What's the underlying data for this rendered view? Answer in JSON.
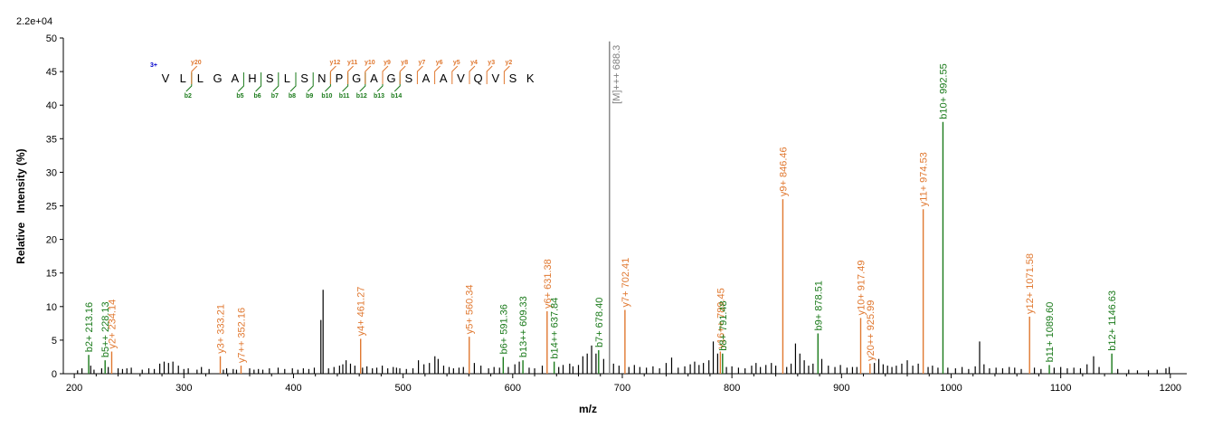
{
  "chart_data": {
    "type": "bar",
    "scale_label": "2.2e+04",
    "xlabel": "m/z",
    "ylabel": "Relative   Intensity (%)",
    "xlim": [
      190,
      1215
    ],
    "ylim": [
      0,
      50
    ],
    "xticks": [
      200,
      300,
      400,
      500,
      600,
      700,
      800,
      900,
      1000,
      1100,
      1200
    ],
    "yticks": [
      0,
      5,
      10,
      15,
      20,
      25,
      30,
      35,
      40,
      45,
      50
    ],
    "colors": {
      "b": "#1a7a1a",
      "y": "#e07830",
      "precursor": "#808080",
      "other": "#000000",
      "charge": "#0000cc"
    },
    "peptide": {
      "charge": "3+",
      "sequence": [
        "V",
        "L",
        "L",
        "G",
        "A",
        "H",
        "S",
        "L",
        "S",
        "N",
        "P",
        "G",
        "A",
        "G",
        "S",
        "A",
        "A",
        "V",
        "Q",
        "V",
        "S",
        "K"
      ],
      "b_ions": [
        {
          "after": 2,
          "label": "b2"
        },
        {
          "after": 5,
          "label": "b5"
        },
        {
          "after": 6,
          "label": "b6"
        },
        {
          "after": 7,
          "label": "b7"
        },
        {
          "after": 8,
          "label": "b8"
        },
        {
          "after": 9,
          "label": "b9"
        },
        {
          "after": 10,
          "label": "b10"
        },
        {
          "after": 11,
          "label": "b11"
        },
        {
          "after": 12,
          "label": "b12"
        },
        {
          "after": 13,
          "label": "b13"
        },
        {
          "after": 14,
          "label": "b14"
        }
      ],
      "y_ions": [
        {
          "after": 2,
          "label": "y20"
        },
        {
          "after": 10,
          "label": "y12"
        },
        {
          "after": 11,
          "label": "y11"
        },
        {
          "after": 12,
          "label": "y10"
        },
        {
          "after": 13,
          "label": "y9"
        },
        {
          "after": 14,
          "label": "y8"
        },
        {
          "after": 15,
          "label": "y7"
        },
        {
          "after": 16,
          "label": "y6"
        },
        {
          "after": 17,
          "label": "y5"
        },
        {
          "after": 18,
          "label": "y4"
        },
        {
          "after": 19,
          "label": "y3"
        },
        {
          "after": 20,
          "label": "y2"
        }
      ]
    },
    "annotated_peaks": [
      {
        "mz": 213.16,
        "intensity": 2.8,
        "type": "b",
        "label": "b2+ 213.16"
      },
      {
        "mz": 228.13,
        "intensity": 2.0,
        "type": "b",
        "label": "b5++ 228.13"
      },
      {
        "mz": 234.14,
        "intensity": 3.3,
        "type": "y",
        "label": "y2+ 234.14"
      },
      {
        "mz": 333.21,
        "intensity": 2.6,
        "type": "y",
        "label": "y3+ 333.21"
      },
      {
        "mz": 352.16,
        "intensity": 1.2,
        "type": "y",
        "label": "y7++ 352.16"
      },
      {
        "mz": 461.27,
        "intensity": 5.2,
        "type": "y",
        "label": "y4+ 461.27"
      },
      {
        "mz": 560.34,
        "intensity": 5.5,
        "type": "y",
        "label": "y5+ 560.34"
      },
      {
        "mz": 591.36,
        "intensity": 2.5,
        "type": "b",
        "label": "b6+ 591.36"
      },
      {
        "mz": 609.33,
        "intensity": 2.0,
        "type": "b",
        "label": "b13++ 609.33"
      },
      {
        "mz": 631.38,
        "intensity": 9.3,
        "type": "y",
        "label": "y6+ 631.38"
      },
      {
        "mz": 637.84,
        "intensity": 1.8,
        "type": "b",
        "label": "b14++ 637.84"
      },
      {
        "mz": 678.4,
        "intensity": 3.5,
        "type": "b",
        "label": "b7+ 678.40"
      },
      {
        "mz": 688.3,
        "intensity": 49.5,
        "type": "precursor",
        "label": "[M]+++ 688.3"
      },
      {
        "mz": 702.41,
        "intensity": 9.5,
        "type": "y",
        "label": "y7+ 702.41"
      },
      {
        "mz": 789.45,
        "intensity": 3.3,
        "type": "y",
        "label": "y16++ 789.45"
      },
      {
        "mz": 791.48,
        "intensity": 3.0,
        "type": "b",
        "label": "b8+ 791.48"
      },
      {
        "mz": 846.46,
        "intensity": 26.0,
        "type": "y",
        "label": "y9+ 846.46"
      },
      {
        "mz": 878.51,
        "intensity": 6.0,
        "type": "b",
        "label": "b9+ 878.51"
      },
      {
        "mz": 917.49,
        "intensity": 8.3,
        "type": "y",
        "label": "y10+ 917.49"
      },
      {
        "mz": 925.99,
        "intensity": 1.5,
        "type": "y",
        "label": "y20++ 925.99"
      },
      {
        "mz": 974.53,
        "intensity": 24.5,
        "type": "y",
        "label": "y11+ 974.53"
      },
      {
        "mz": 992.55,
        "intensity": 37.5,
        "type": "b",
        "label": "b10+ 992.55"
      },
      {
        "mz": 1071.58,
        "intensity": 8.5,
        "type": "y",
        "label": "y12+ 1071.58"
      },
      {
        "mz": 1089.6,
        "intensity": 1.3,
        "type": "b",
        "label": "b11+ 1089.60"
      },
      {
        "mz": 1146.63,
        "intensity": 3.0,
        "type": "b",
        "label": "b12+ 1146.63"
      }
    ],
    "other_peaks": [
      [
        203,
        0.5
      ],
      [
        207,
        0.8
      ],
      [
        215,
        1.2
      ],
      [
        218,
        0.6
      ],
      [
        225,
        0.8
      ],
      [
        231,
        1.0
      ],
      [
        240,
        0.8
      ],
      [
        244,
        0.7
      ],
      [
        248,
        0.8
      ],
      [
        252,
        0.9
      ],
      [
        262,
        0.6
      ],
      [
        268,
        0.8
      ],
      [
        273,
        0.7
      ],
      [
        278,
        1.5
      ],
      [
        282,
        1.8
      ],
      [
        286,
        1.6
      ],
      [
        290,
        1.8
      ],
      [
        295,
        1.2
      ],
      [
        300,
        0.7
      ],
      [
        304,
        0.8
      ],
      [
        312,
        0.6
      ],
      [
        316,
        1.0
      ],
      [
        323,
        0.7
      ],
      [
        336,
        0.6
      ],
      [
        339,
        0.8
      ],
      [
        345,
        0.7
      ],
      [
        348,
        0.6
      ],
      [
        360,
        0.8
      ],
      [
        364,
        0.6
      ],
      [
        368,
        0.7
      ],
      [
        372,
        0.6
      ],
      [
        378,
        0.8
      ],
      [
        386,
        0.9
      ],
      [
        392,
        0.7
      ],
      [
        399,
        0.8
      ],
      [
        404,
        0.6
      ],
      [
        409,
        0.8
      ],
      [
        414,
        0.7
      ],
      [
        419,
        0.9
      ],
      [
        425,
        8.0
      ],
      [
        427,
        12.5
      ],
      [
        432,
        0.8
      ],
      [
        437,
        1.0
      ],
      [
        442,
        1.2
      ],
      [
        445,
        1.4
      ],
      [
        448,
        2.0
      ],
      [
        452,
        1.5
      ],
      [
        456,
        1.2
      ],
      [
        463,
        0.9
      ],
      [
        467,
        1.1
      ],
      [
        472,
        0.8
      ],
      [
        476,
        0.9
      ],
      [
        481,
        1.2
      ],
      [
        486,
        0.8
      ],
      [
        491,
        1.0
      ],
      [
        494,
        0.9
      ],
      [
        497,
        0.8
      ],
      [
        503,
        0.7
      ],
      [
        509,
        0.8
      ],
      [
        514,
        2.0
      ],
      [
        519,
        1.4
      ],
      [
        524,
        1.6
      ],
      [
        529,
        2.6
      ],
      [
        532,
        2.2
      ],
      [
        537,
        1.2
      ],
      [
        542,
        1.0
      ],
      [
        546,
        0.8
      ],
      [
        551,
        0.9
      ],
      [
        555,
        1.0
      ],
      [
        565,
        1.6
      ],
      [
        571,
        1.2
      ],
      [
        578,
        0.8
      ],
      [
        583,
        1.0
      ],
      [
        588,
        0.9
      ],
      [
        596,
        1.0
      ],
      [
        602,
        1.4
      ],
      [
        606,
        1.8
      ],
      [
        615,
        0.9
      ],
      [
        620,
        0.8
      ],
      [
        627,
        1.2
      ],
      [
        642,
        1.0
      ],
      [
        646,
        1.3
      ],
      [
        652,
        1.5
      ],
      [
        655,
        1.1
      ],
      [
        660,
        1.3
      ],
      [
        664,
        2.6
      ],
      [
        668,
        3.0
      ],
      [
        672,
        4.2
      ],
      [
        676,
        3.0
      ],
      [
        683,
        2.2
      ],
      [
        692,
        1.5
      ],
      [
        697,
        1.2
      ],
      [
        706,
        1.0
      ],
      [
        711,
        1.3
      ],
      [
        716,
        1.0
      ],
      [
        722,
        0.9
      ],
      [
        728,
        1.1
      ],
      [
        734,
        0.8
      ],
      [
        740,
        1.6
      ],
      [
        745,
        2.4
      ],
      [
        751,
        0.9
      ],
      [
        757,
        1.1
      ],
      [
        762,
        1.4
      ],
      [
        766,
        1.8
      ],
      [
        770,
        1.3
      ],
      [
        774,
        1.6
      ],
      [
        779,
        2.0
      ],
      [
        783,
        4.8
      ],
      [
        787,
        3.0
      ],
      [
        795,
        1.0
      ],
      [
        800,
        1.1
      ],
      [
        806,
        0.9
      ],
      [
        812,
        0.8
      ],
      [
        818,
        1.2
      ],
      [
        822,
        1.6
      ],
      [
        826,
        1.0
      ],
      [
        831,
        1.3
      ],
      [
        836,
        1.6
      ],
      [
        840,
        1.2
      ],
      [
        850,
        1.0
      ],
      [
        854,
        1.5
      ],
      [
        858,
        4.5
      ],
      [
        862,
        3.0
      ],
      [
        866,
        2.0
      ],
      [
        870,
        1.2
      ],
      [
        874,
        1.5
      ],
      [
        882,
        2.2
      ],
      [
        888,
        1.2
      ],
      [
        894,
        1.0
      ],
      [
        899,
        1.3
      ],
      [
        905,
        0.9
      ],
      [
        910,
        1.0
      ],
      [
        914,
        1.0
      ],
      [
        930,
        1.6
      ],
      [
        934,
        2.2
      ],
      [
        938,
        1.4
      ],
      [
        942,
        1.2
      ],
      [
        946,
        1.0
      ],
      [
        950,
        1.2
      ],
      [
        955,
        1.5
      ],
      [
        960,
        2.0
      ],
      [
        965,
        1.2
      ],
      [
        970,
        1.5
      ],
      [
        979,
        1.0
      ],
      [
        983,
        1.2
      ],
      [
        988,
        0.9
      ],
      [
        997,
        0.9
      ],
      [
        1004,
        0.8
      ],
      [
        1010,
        1.0
      ],
      [
        1016,
        0.7
      ],
      [
        1022,
        1.1
      ],
      [
        1026,
        4.8
      ],
      [
        1030,
        1.4
      ],
      [
        1035,
        0.8
      ],
      [
        1041,
        0.9
      ],
      [
        1047,
        0.8
      ],
      [
        1053,
        1.0
      ],
      [
        1058,
        0.9
      ],
      [
        1064,
        0.7
      ],
      [
        1076,
        0.9
      ],
      [
        1082,
        0.7
      ],
      [
        1094,
        0.9
      ],
      [
        1100,
        1.0
      ],
      [
        1106,
        0.8
      ],
      [
        1112,
        0.9
      ],
      [
        1118,
        0.8
      ],
      [
        1124,
        1.4
      ],
      [
        1130,
        2.6
      ],
      [
        1135,
        1.0
      ],
      [
        1152,
        0.7
      ],
      [
        1162,
        0.6
      ],
      [
        1170,
        0.5
      ],
      [
        1180,
        0.5
      ],
      [
        1188,
        0.6
      ],
      [
        1196,
        0.8
      ],
      [
        1199,
        1.0
      ]
    ]
  }
}
